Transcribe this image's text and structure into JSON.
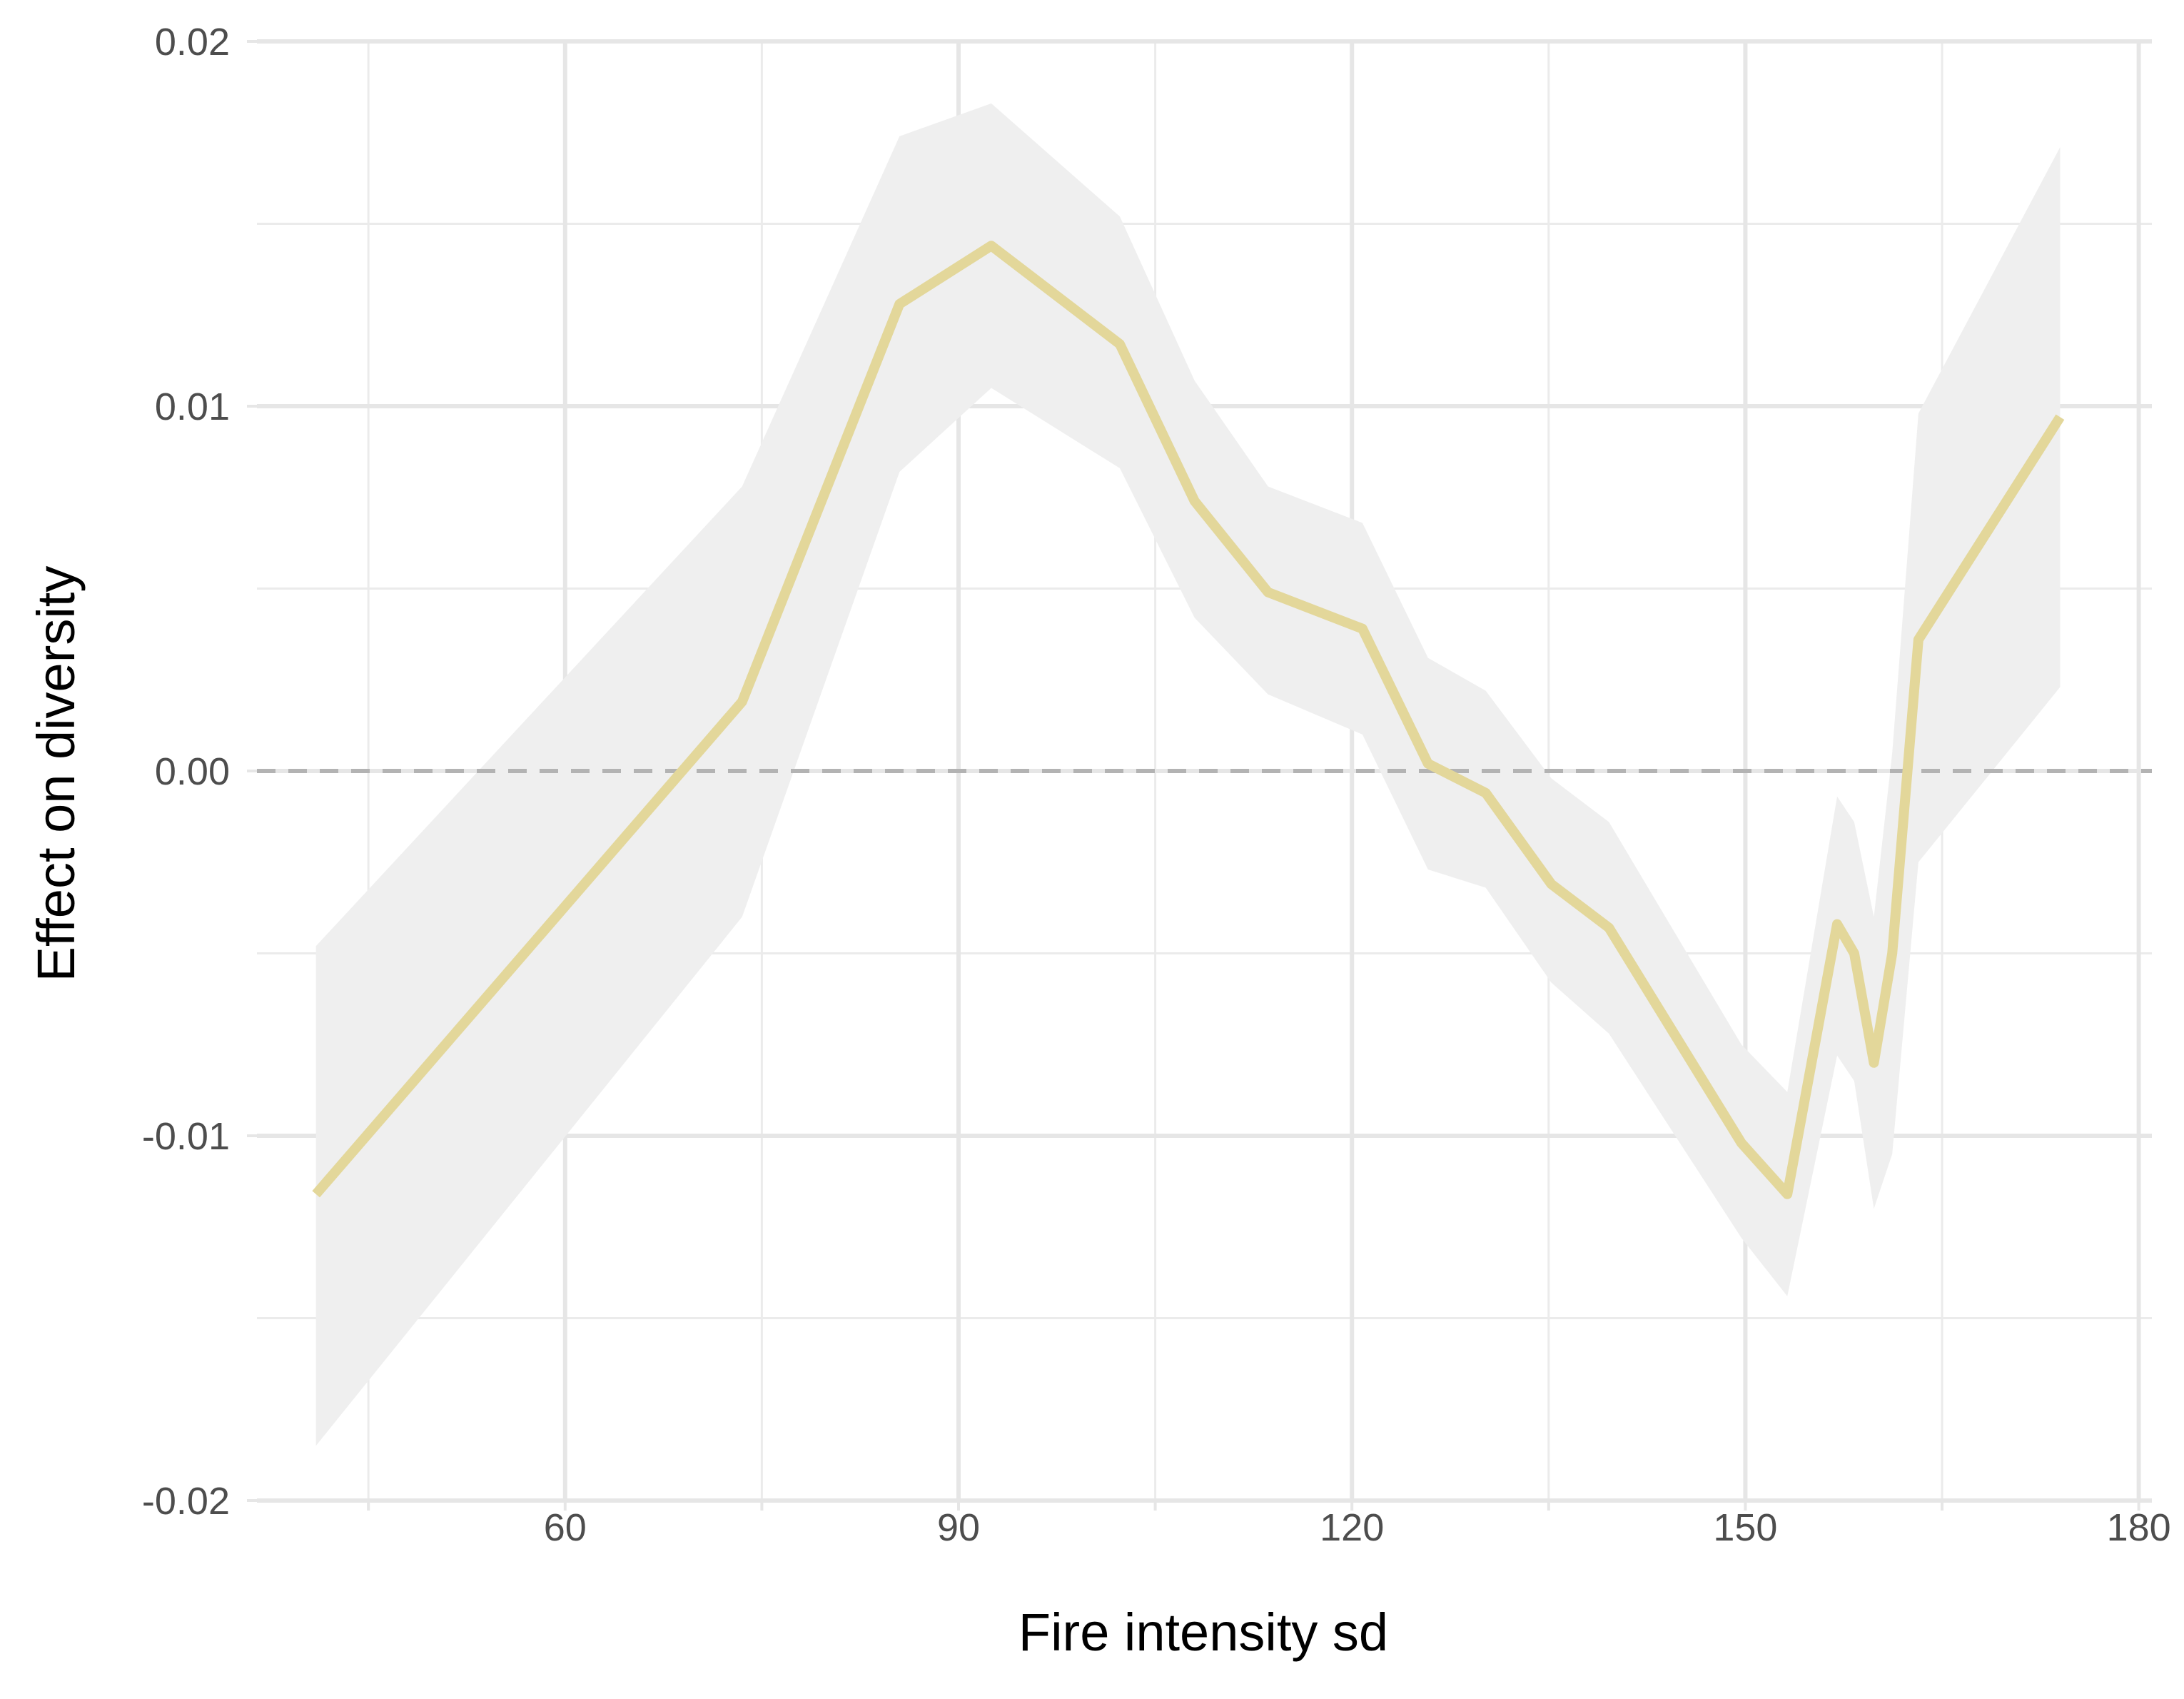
{
  "chart_data": {
    "type": "line",
    "title": "",
    "xlabel": "Fire intensity sd",
    "ylabel": "Effect on diversity",
    "xlim": [
      36.5,
      181
    ],
    "ylim": [
      -0.02,
      0.02
    ],
    "x_ticks": [
      60,
      90,
      120,
      150,
      180
    ],
    "y_ticks": [
      -0.02,
      -0.01,
      0.0,
      0.01,
      0.02
    ],
    "x_tick_labels": [
      "60",
      "90",
      "120",
      "150",
      "180"
    ],
    "y_tick_labels": [
      "-0.02",
      "-0.01",
      "0.00",
      "0.01",
      "0.02"
    ],
    "x_minor_ticks": [
      45,
      75,
      105,
      135,
      165
    ],
    "y_minor_ticks": [
      -0.015,
      -0.005,
      0.005,
      0.015
    ],
    "grid": true,
    "reference_line": {
      "y": 0.0,
      "style": "dashed",
      "color": "#b3b3b3"
    },
    "line_color": "#e3d79a",
    "band_color": "#efefef",
    "series": [
      {
        "x": [
          41.0,
          73.5,
          85.5,
          92.5,
          102.3,
          108.0,
          113.6,
          120.8,
          125.8,
          130.2,
          135.2,
          139.6,
          149.7,
          153.2,
          157.0,
          158.3,
          159.8,
          161.2,
          163.2,
          174.0
        ],
        "y": [
          -0.0116,
          0.0019,
          0.0128,
          0.0144,
          0.0117,
          0.0074,
          0.0049,
          0.0039,
          0.0002,
          -0.0006,
          -0.0031,
          -0.0043,
          -0.0102,
          -0.0116,
          -0.0042,
          -0.005,
          -0.008,
          -0.005,
          0.0036,
          0.0097
        ],
        "lower": [
          -0.0185,
          -0.004,
          0.0082,
          0.0105,
          0.0083,
          0.0042,
          0.0021,
          0.001,
          -0.0027,
          -0.0032,
          -0.0058,
          -0.0072,
          -0.0128,
          -0.0144,
          -0.0078,
          -0.0085,
          -0.012,
          -0.0105,
          -0.0025,
          0.0023
        ],
        "upper": [
          -0.0048,
          0.0078,
          0.0174,
          0.0183,
          0.0152,
          0.0107,
          0.0078,
          0.0068,
          0.0031,
          0.0022,
          -0.0002,
          -0.0014,
          -0.0075,
          -0.0088,
          -0.0007,
          -0.0014,
          -0.004,
          0.0005,
          0.0098,
          0.0171
        ]
      }
    ]
  }
}
